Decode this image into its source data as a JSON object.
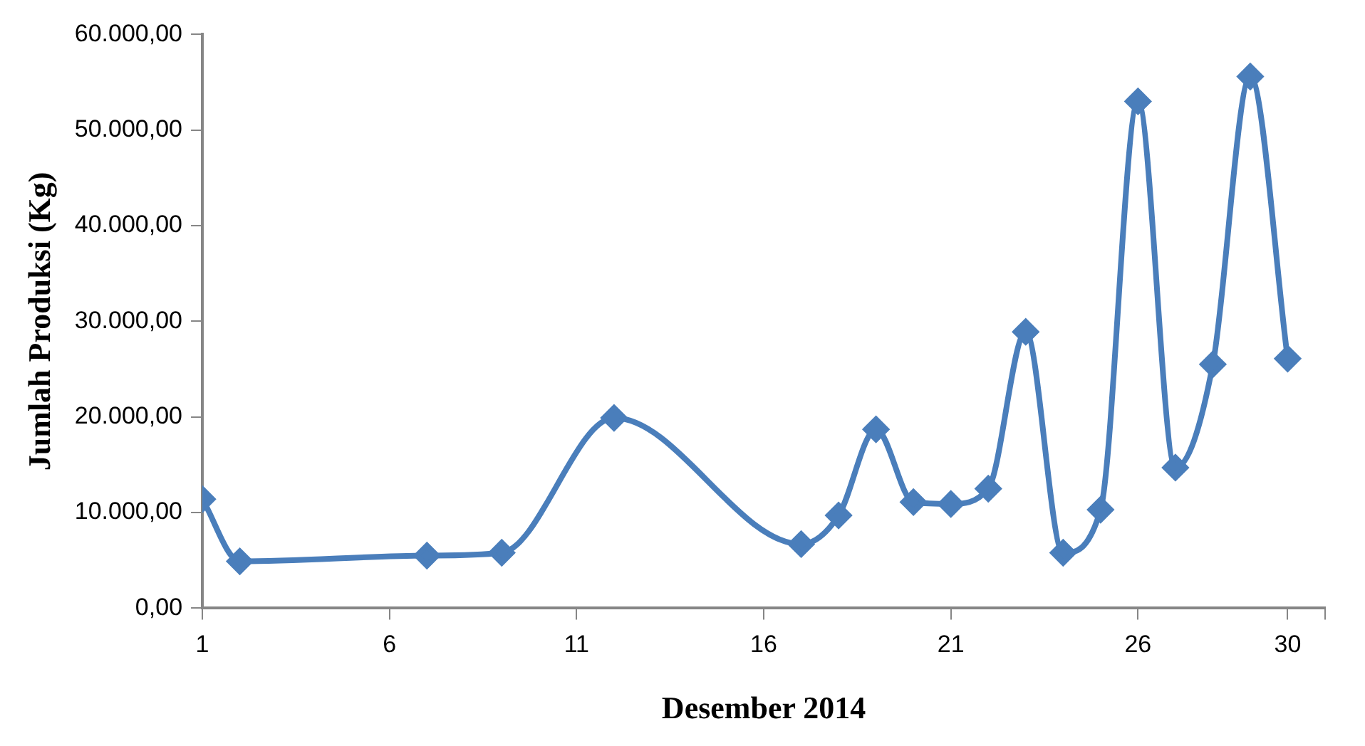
{
  "chart_data": {
    "type": "line",
    "xlabel": "Desember 2014",
    "ylabel": "Jumlah Produksi (Kg)",
    "x": [
      1,
      2,
      7,
      9,
      12,
      17,
      18,
      19,
      20,
      21,
      22,
      23,
      24,
      25,
      26,
      27,
      28,
      29,
      30
    ],
    "series": [
      {
        "color": "#4a7ebb",
        "values": [
          11400,
          4900,
          5500,
          5800,
          19900,
          6700,
          9700,
          18700,
          11100,
          10900,
          12500,
          28900,
          5800,
          10300,
          53000,
          14700,
          25500,
          55600,
          26100
        ]
      }
    ],
    "xlim": [
      1,
      31
    ],
    "xticks": [
      1,
      6,
      11,
      16,
      21,
      26,
      30,
      {
        "value": 31,
        "label": null
      }
    ],
    "ylim": [
      0,
      60000
    ],
    "yticks": [
      {
        "value": 0,
        "label": "0,00"
      },
      {
        "value": 10000,
        "label": "10.000,00"
      },
      {
        "value": 20000,
        "label": "20.000,00"
      },
      {
        "value": 30000,
        "label": "30.000,00"
      },
      {
        "value": 40000,
        "label": "40.000,00"
      },
      {
        "value": 50000,
        "label": "50.000,00"
      },
      {
        "value": 60000,
        "label": "60.000,00"
      }
    ],
    "grid": false,
    "legend": false,
    "marker": "diamond",
    "line_style": "solid"
  }
}
